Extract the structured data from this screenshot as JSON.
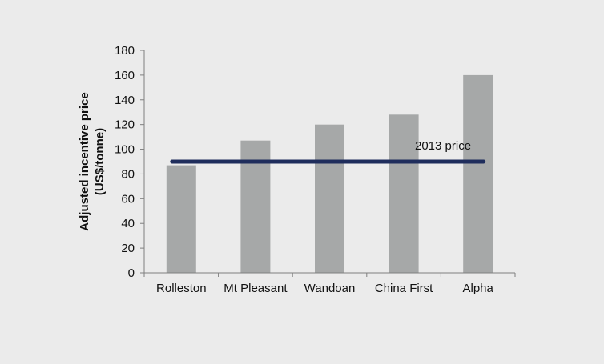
{
  "chart_data": {
    "type": "bar",
    "categories": [
      "Rolleston",
      "Mt Pleasant",
      "Wandoan",
      "China First",
      "Alpha"
    ],
    "values": [
      87,
      107,
      120,
      128,
      160
    ],
    "ylabel": "Adjusted incentive price",
    "ylabel_unit": "(US$/tonne)",
    "ylim": [
      0,
      180
    ],
    "yticks": [
      0,
      20,
      40,
      60,
      80,
      100,
      120,
      140,
      160,
      180
    ],
    "grid": false,
    "legend": "none",
    "reference_line": {
      "label": "2013 price",
      "value": 90
    },
    "colors": {
      "bar": "#a6a8a8",
      "reference_line": "#1f2d5c",
      "axis": "#7f7f7f",
      "background": "#ebebeb"
    }
  }
}
